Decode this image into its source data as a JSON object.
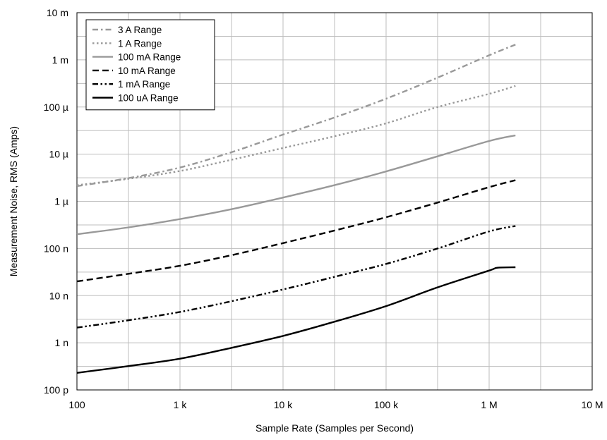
{
  "chart_data": {
    "type": "line",
    "title": "",
    "xlabel": "Sample Rate (Samples per Second)",
    "ylabel": "Measurement Noise, RMS (Amps)",
    "x_scale": "log",
    "y_scale": "log",
    "xlim": [
      100,
      10000000
    ],
    "ylim": [
      1e-10,
      0.01
    ],
    "grid": true,
    "legend_position": "top-left",
    "x_ticks": [
      {
        "value": 100,
        "label": "100"
      },
      {
        "value": 1000,
        "label": "1 k"
      },
      {
        "value": 10000,
        "label": "10 k"
      },
      {
        "value": 100000,
        "label": "100 k"
      },
      {
        "value": 1000000,
        "label": "1 M"
      },
      {
        "value": 10000000,
        "label": "10 M"
      }
    ],
    "y_ticks": [
      {
        "value": 1e-10,
        "label": "100 p"
      },
      {
        "value": 1e-09,
        "label": "1 n"
      },
      {
        "value": 1e-08,
        "label": "10 n"
      },
      {
        "value": 1e-07,
        "label": "100 n"
      },
      {
        "value": 1e-06,
        "label": "1 µ"
      },
      {
        "value": 1e-05,
        "label": "10 µ"
      },
      {
        "value": 0.0001,
        "label": "100 µ"
      },
      {
        "value": 0.001,
        "label": "1 m"
      },
      {
        "value": 0.01,
        "label": "10 m"
      }
    ],
    "series": [
      {
        "name": "3 A Range",
        "color": "#999999",
        "dash": "dash-dot",
        "x": [
          100,
          316,
          1000,
          3160,
          10000,
          31600,
          100000,
          316000,
          1000000,
          1800000
        ],
        "y": [
          2.1e-06,
          3.1e-06,
          5.2e-06,
          1.1e-05,
          2.6e-05,
          6e-05,
          0.00015,
          0.00042,
          0.00125,
          0.0021
        ]
      },
      {
        "name": "1 A Range",
        "color": "#999999",
        "dash": "dotted",
        "x": [
          100,
          316,
          1000,
          3160,
          10000,
          31600,
          100000,
          316000,
          1000000,
          1800000
        ],
        "y": [
          2.2e-06,
          3e-06,
          4.4e-06,
          7.6e-06,
          1.35e-05,
          2.4e-05,
          4.5e-05,
          0.0001,
          0.00019,
          0.00028
        ]
      },
      {
        "name": "100 mA Range",
        "color": "#999999",
        "dash": "solid",
        "x": [
          100,
          316,
          1000,
          3160,
          10000,
          31600,
          100000,
          316000,
          1000000,
          1800000
        ],
        "y": [
          2e-07,
          2.8e-07,
          4.2e-07,
          6.8e-07,
          1.2e-06,
          2.2e-06,
          4.3e-06,
          9e-06,
          1.9e-05,
          2.5e-05
        ]
      },
      {
        "name": "10 mA Range",
        "color": "#000000",
        "dash": "dashed",
        "x": [
          100,
          316,
          1000,
          3160,
          10000,
          31600,
          100000,
          316000,
          1000000,
          1800000
        ],
        "y": [
          2e-08,
          2.9e-08,
          4.3e-08,
          7.2e-08,
          1.3e-07,
          2.4e-07,
          4.6e-07,
          9.4e-07,
          2e-06,
          2.8e-06
        ]
      },
      {
        "name": "1 mA Range",
        "color": "#000000",
        "dash": "dash-dot-dot",
        "x": [
          100,
          316,
          1000,
          3160,
          10000,
          31600,
          100000,
          316000,
          1000000,
          1800000
        ],
        "y": [
          2.1e-09,
          3e-09,
          4.5e-09,
          7.6e-09,
          1.35e-08,
          2.5e-08,
          4.7e-08,
          1e-07,
          2.3e-07,
          3e-07
        ]
      },
      {
        "name": "100 uA Range",
        "color": "#000000",
        "dash": "solid",
        "x": [
          100,
          316,
          1000,
          3160,
          10000,
          31600,
          100000,
          316000,
          1000000,
          1200000,
          1800000
        ],
        "y": [
          2.3e-10,
          3.2e-10,
          4.6e-10,
          7.8e-10,
          1.4e-09,
          2.8e-09,
          6e-09,
          1.5e-08,
          3.4e-08,
          3.9e-08,
          4e-08
        ]
      }
    ]
  }
}
